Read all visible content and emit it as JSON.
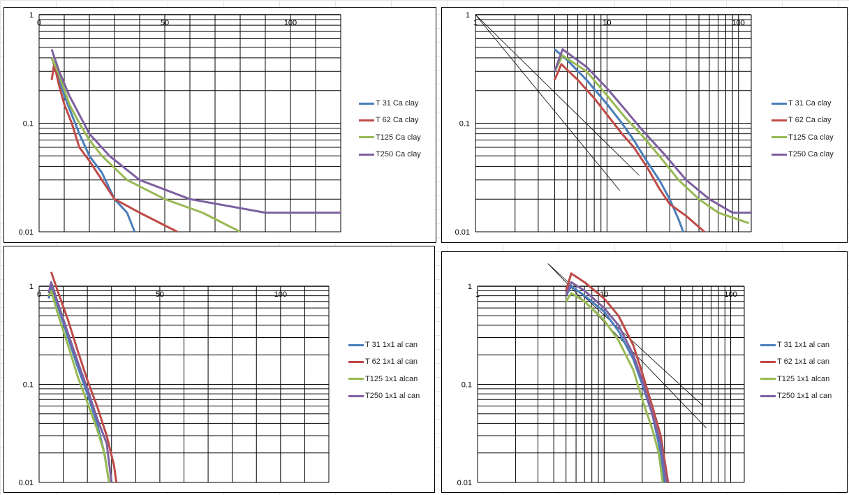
{
  "colors": {
    "T31": "#4a7ebb",
    "T62": "#be4b48",
    "T125": "#98b954",
    "T250": "#7d60a0"
  },
  "chart_data": [
    {
      "type": "line",
      "title": "",
      "xscale": "linear",
      "xlim": [
        0,
        120
      ],
      "xticks": [
        "0",
        "50",
        "100"
      ],
      "xtick_values": [
        0,
        50,
        100
      ],
      "yscale": "log",
      "ylim": [
        0.01,
        1
      ],
      "yticks": [
        "1",
        "0.1",
        "0.01"
      ],
      "legend": "right",
      "grid": true,
      "series": [
        {
          "name": "T 31 Ca clay",
          "key": "T31",
          "points": [
            [
              5,
              0.4
            ],
            [
              7,
              0.3
            ],
            [
              10,
              0.18
            ],
            [
              13,
              0.12
            ],
            [
              16,
              0.08
            ],
            [
              20,
              0.05
            ],
            [
              25,
              0.035
            ],
            [
              30,
              0.02
            ],
            [
              35,
              0.015
            ],
            [
              38,
              0.01
            ]
          ]
        },
        {
          "name": "T 62 Ca clay",
          "key": "T62",
          "points": [
            [
              5,
              0.25
            ],
            [
              6,
              0.35
            ],
            [
              8,
              0.22
            ],
            [
              10,
              0.15
            ],
            [
              13,
              0.1
            ],
            [
              16,
              0.06
            ],
            [
              20,
              0.045
            ],
            [
              25,
              0.03
            ],
            [
              30,
              0.02
            ],
            [
              40,
              0.015
            ],
            [
              55,
              0.01
            ]
          ]
        },
        {
          "name": "T125 Ca clay",
          "key": "T125",
          "points": [
            [
              5,
              0.4
            ],
            [
              8,
              0.28
            ],
            [
              12,
              0.15
            ],
            [
              16,
              0.1
            ],
            [
              20,
              0.07
            ],
            [
              25,
              0.05
            ],
            [
              35,
              0.03
            ],
            [
              50,
              0.02
            ],
            [
              65,
              0.015
            ],
            [
              80,
              0.01
            ]
          ]
        },
        {
          "name": "T250 Ca clay",
          "key": "T250",
          "points": [
            [
              5,
              0.48
            ],
            [
              8,
              0.3
            ],
            [
              12,
              0.18
            ],
            [
              16,
              0.12
            ],
            [
              20,
              0.08
            ],
            [
              28,
              0.05
            ],
            [
              40,
              0.03
            ],
            [
              60,
              0.02
            ],
            [
              90,
              0.015
            ],
            [
              120,
              0.015
            ]
          ]
        }
      ],
      "reference_lines": []
    },
    {
      "type": "line",
      "title": "",
      "xscale": "log",
      "xlim": [
        1,
        125
      ],
      "xticks": [
        "1",
        "10",
        "100"
      ],
      "xtick_values": [
        1,
        10,
        100
      ],
      "yscale": "log",
      "ylim": [
        0.01,
        1
      ],
      "yticks": [
        "1",
        "0.1",
        "0.01"
      ],
      "legend": "right",
      "grid": true,
      "series": [
        {
          "name": "T 31 Ca clay",
          "key": "T31",
          "points": [
            [
              4,
              0.48
            ],
            [
              5,
              0.38
            ],
            [
              7,
              0.25
            ],
            [
              10,
              0.15
            ],
            [
              13,
              0.1
            ],
            [
              16,
              0.07
            ],
            [
              20,
              0.045
            ],
            [
              25,
              0.03
            ],
            [
              30,
              0.02
            ],
            [
              35,
              0.013
            ],
            [
              38,
              0.01
            ]
          ]
        },
        {
          "name": "T 62 Ca clay",
          "key": "T62",
          "points": [
            [
              4,
              0.25
            ],
            [
              4.5,
              0.35
            ],
            [
              6,
              0.25
            ],
            [
              8,
              0.17
            ],
            [
              10,
              0.12
            ],
            [
              13,
              0.08
            ],
            [
              16,
              0.06
            ],
            [
              20,
              0.04
            ],
            [
              25,
              0.025
            ],
            [
              30,
              0.018
            ],
            [
              40,
              0.014
            ],
            [
              55,
              0.01
            ]
          ]
        },
        {
          "name": "T125 Ca clay",
          "key": "T125",
          "points": [
            [
              4,
              0.3
            ],
            [
              4.6,
              0.42
            ],
            [
              7,
              0.3
            ],
            [
              10,
              0.18
            ],
            [
              14,
              0.11
            ],
            [
              18,
              0.08
            ],
            [
              25,
              0.05
            ],
            [
              35,
              0.03
            ],
            [
              50,
              0.02
            ],
            [
              70,
              0.015
            ],
            [
              120,
              0.012
            ]
          ]
        },
        {
          "name": "T250 Ca clay",
          "key": "T250",
          "points": [
            [
              4,
              0.3
            ],
            [
              4.6,
              0.48
            ],
            [
              7,
              0.33
            ],
            [
              10,
              0.21
            ],
            [
              14,
              0.13
            ],
            [
              18,
              0.09
            ],
            [
              28,
              0.05
            ],
            [
              40,
              0.03
            ],
            [
              60,
              0.02
            ],
            [
              90,
              0.015
            ],
            [
              125,
              0.015
            ]
          ]
        }
      ],
      "reference_lines": [
        [
          [
            1,
            1
          ],
          [
            12.5,
            0.024
          ]
        ],
        [
          [
            1,
            1
          ],
          [
            17.6,
            0.033
          ]
        ]
      ]
    },
    {
      "type": "line",
      "title": "",
      "xscale": "linear",
      "xlim": [
        0,
        120
      ],
      "xticks": [
        "0",
        "50",
        "100"
      ],
      "xtick_values": [
        0,
        50,
        100
      ],
      "yscale": "log",
      "ylim": [
        0.01,
        1
      ],
      "yticks": [
        "1",
        "0.1",
        "0.01"
      ],
      "legend": "right",
      "grid": true,
      "series": [
        {
          "name": "T 31 1x1 al can",
          "key": "T31",
          "points": [
            [
              4,
              0.75
            ],
            [
              5,
              1.0
            ],
            [
              8,
              0.6
            ],
            [
              12,
              0.3
            ],
            [
              16,
              0.15
            ],
            [
              20,
              0.08
            ],
            [
              24,
              0.04
            ],
            [
              27,
              0.02
            ],
            [
              29,
              0.01
            ]
          ]
        },
        {
          "name": "T 62 1x1 al can",
          "key": "T62",
          "points": [
            [
              5,
              1.4
            ],
            [
              8,
              0.85
            ],
            [
              12,
              0.45
            ],
            [
              16,
              0.22
            ],
            [
              20,
              0.11
            ],
            [
              24,
              0.06
            ],
            [
              28,
              0.03
            ],
            [
              31,
              0.015
            ],
            [
              32,
              0.01
            ]
          ]
        },
        {
          "name": "T125 1x1 alcan",
          "key": "T125",
          "points": [
            [
              4,
              0.8
            ],
            [
              5,
              0.9
            ],
            [
              8,
              0.5
            ],
            [
              12,
              0.25
            ],
            [
              16,
              0.12
            ],
            [
              20,
              0.065
            ],
            [
              24,
              0.035
            ],
            [
              27,
              0.02
            ],
            [
              29,
              0.01
            ]
          ]
        },
        {
          "name": "T250 1x1 al can",
          "key": "T250",
          "points": [
            [
              4,
              0.85
            ],
            [
              5,
              1.1
            ],
            [
              8,
              0.65
            ],
            [
              12,
              0.33
            ],
            [
              16,
              0.17
            ],
            [
              20,
              0.09
            ],
            [
              24,
              0.045
            ],
            [
              28,
              0.025
            ],
            [
              30,
              0.01
            ]
          ]
        }
      ],
      "reference_lines": []
    },
    {
      "type": "line",
      "title": "",
      "xscale": "log",
      "xlim": [
        1,
        128
      ],
      "xticks": [
        "1",
        "10",
        "100"
      ],
      "xtick_values": [
        1,
        10,
        100
      ],
      "yscale": "log",
      "ylim": [
        0.01,
        1
      ],
      "yticks": [
        "1",
        "0.1",
        "0.01"
      ],
      "legend": "right",
      "grid": true,
      "series": [
        {
          "name": "T 31 1x1 al can",
          "key": "T31",
          "points": [
            [
              5,
              0.8
            ],
            [
              5.5,
              1.0
            ],
            [
              7,
              0.8
            ],
            [
              10,
              0.55
            ],
            [
              13,
              0.35
            ],
            [
              17,
              0.18
            ],
            [
              20,
              0.1
            ],
            [
              24,
              0.05
            ],
            [
              28,
              0.02
            ],
            [
              30,
              0.01
            ]
          ]
        },
        {
          "name": "T 62 1x1 al can",
          "key": "T62",
          "points": [
            [
              5,
              0.9
            ],
            [
              5.5,
              1.35
            ],
            [
              7,
              1.1
            ],
            [
              10,
              0.75
            ],
            [
              13,
              0.5
            ],
            [
              17,
              0.25
            ],
            [
              20,
              0.13
            ],
            [
              24,
              0.06
            ],
            [
              28,
              0.03
            ],
            [
              32,
              0.01
            ]
          ]
        },
        {
          "name": "T125 1x1 alcan",
          "key": "T125",
          "points": [
            [
              5,
              0.7
            ],
            [
              5.5,
              0.85
            ],
            [
              7,
              0.7
            ],
            [
              10,
              0.45
            ],
            [
              13,
              0.28
            ],
            [
              17,
              0.14
            ],
            [
              20,
              0.07
            ],
            [
              24,
              0.035
            ],
            [
              27,
              0.02
            ],
            [
              29,
              0.01
            ]
          ]
        },
        {
          "name": "T250 1x1 al can",
          "key": "T250",
          "points": [
            [
              5,
              0.8
            ],
            [
              5.5,
              1.1
            ],
            [
              7,
              0.9
            ],
            [
              10,
              0.6
            ],
            [
              13,
              0.4
            ],
            [
              17,
              0.2
            ],
            [
              20,
              0.11
            ],
            [
              24,
              0.05
            ],
            [
              28,
              0.025
            ],
            [
              31,
              0.01
            ]
          ]
        }
      ],
      "reference_lines": [
        [
          [
            3.6,
            1.7
          ],
          [
            60,
            0.061
          ]
        ],
        [
          [
            3.6,
            1.7
          ],
          [
            64,
            0.036
          ]
        ]
      ]
    }
  ]
}
